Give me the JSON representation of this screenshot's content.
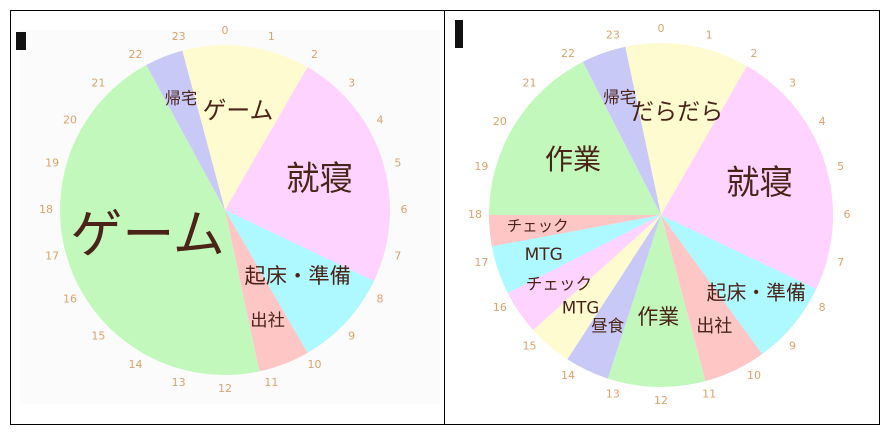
{
  "chart_data": [
    {
      "type": "pie",
      "start": 23,
      "xlim": [
        0,
        24
      ],
      "xticks": [
        0,
        1,
        2,
        3,
        4,
        5,
        6,
        7,
        8,
        9,
        10,
        11,
        12,
        13,
        14,
        15,
        16,
        17,
        18,
        19,
        20,
        21,
        22,
        23
      ],
      "categories": [
        "ゲーム",
        "就寝",
        "起床・準備",
        "出社",
        "ゲーム",
        "帰宅"
      ],
      "values": [
        3,
        5.7,
        2.3,
        1.2,
        10.9,
        0.9
      ],
      "colors": [
        "#fffbd0",
        "#ffd3ff",
        "#aef8ff",
        "#ffc6c6",
        "#c2f8bc",
        "#c9c9f7"
      ]
    },
    {
      "type": "pie",
      "start": 23.2,
      "xlim": [
        0,
        24
      ],
      "xticks": [
        0,
        1,
        2,
        3,
        4,
        5,
        6,
        7,
        8,
        9,
        10,
        11,
        12,
        13,
        14,
        15,
        16,
        17,
        18,
        19,
        20,
        21,
        22,
        23
      ],
      "categories": [
        "だらだら",
        "就寝",
        "起床・準備",
        "出社",
        "作業",
        "昼食",
        "MTG",
        "チェック",
        "MTG",
        "チェック",
        "作業",
        "帰宅"
      ],
      "values": [
        2.8,
        5.7,
        1.9,
        1.4,
        2.2,
        1,
        1,
        1,
        1.1,
        0.7,
        4.2,
        1
      ],
      "colors": [
        "#fffbd0",
        "#ffd3ff",
        "#aef8ff",
        "#ffc6c6",
        "#c2f8bc",
        "#c9c9f7",
        "#fffbd0",
        "#ffd3ff",
        "#aef8ff",
        "#ffc6c6",
        "#c2f8bc",
        "#c9c9f7"
      ]
    }
  ]
}
